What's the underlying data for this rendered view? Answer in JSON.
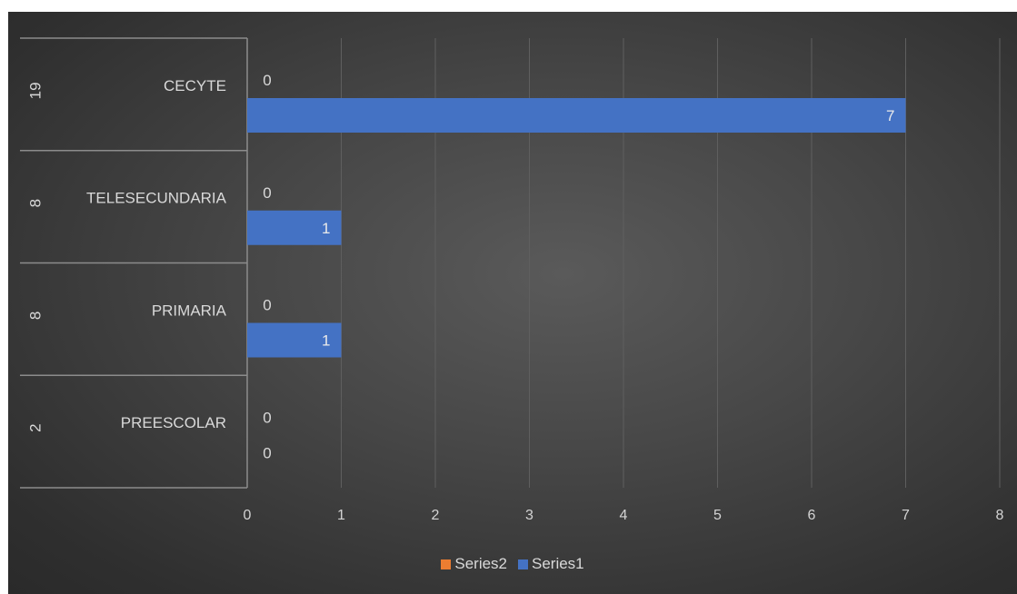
{
  "chart_data": {
    "type": "bar",
    "orientation": "horizontal",
    "categories": [
      "CECYTE",
      "TELESECUNDARIA",
      "PRIMARIA",
      "PREESCOLAR"
    ],
    "group_labels": [
      "19",
      "8",
      "8",
      "2"
    ],
    "series": [
      {
        "name": "Series2",
        "values": [
          0,
          0,
          0,
          0
        ],
        "color": "#ed7d31"
      },
      {
        "name": "Series1",
        "values": [
          7,
          1,
          1,
          0
        ],
        "color": "#4472c4"
      }
    ],
    "xlim": [
      0,
      8
    ],
    "x_ticks": [
      "0",
      "1",
      "2",
      "3",
      "4",
      "5",
      "6",
      "7",
      "8"
    ],
    "grid": true,
    "legend_position": "bottom",
    "background": "#404040"
  }
}
